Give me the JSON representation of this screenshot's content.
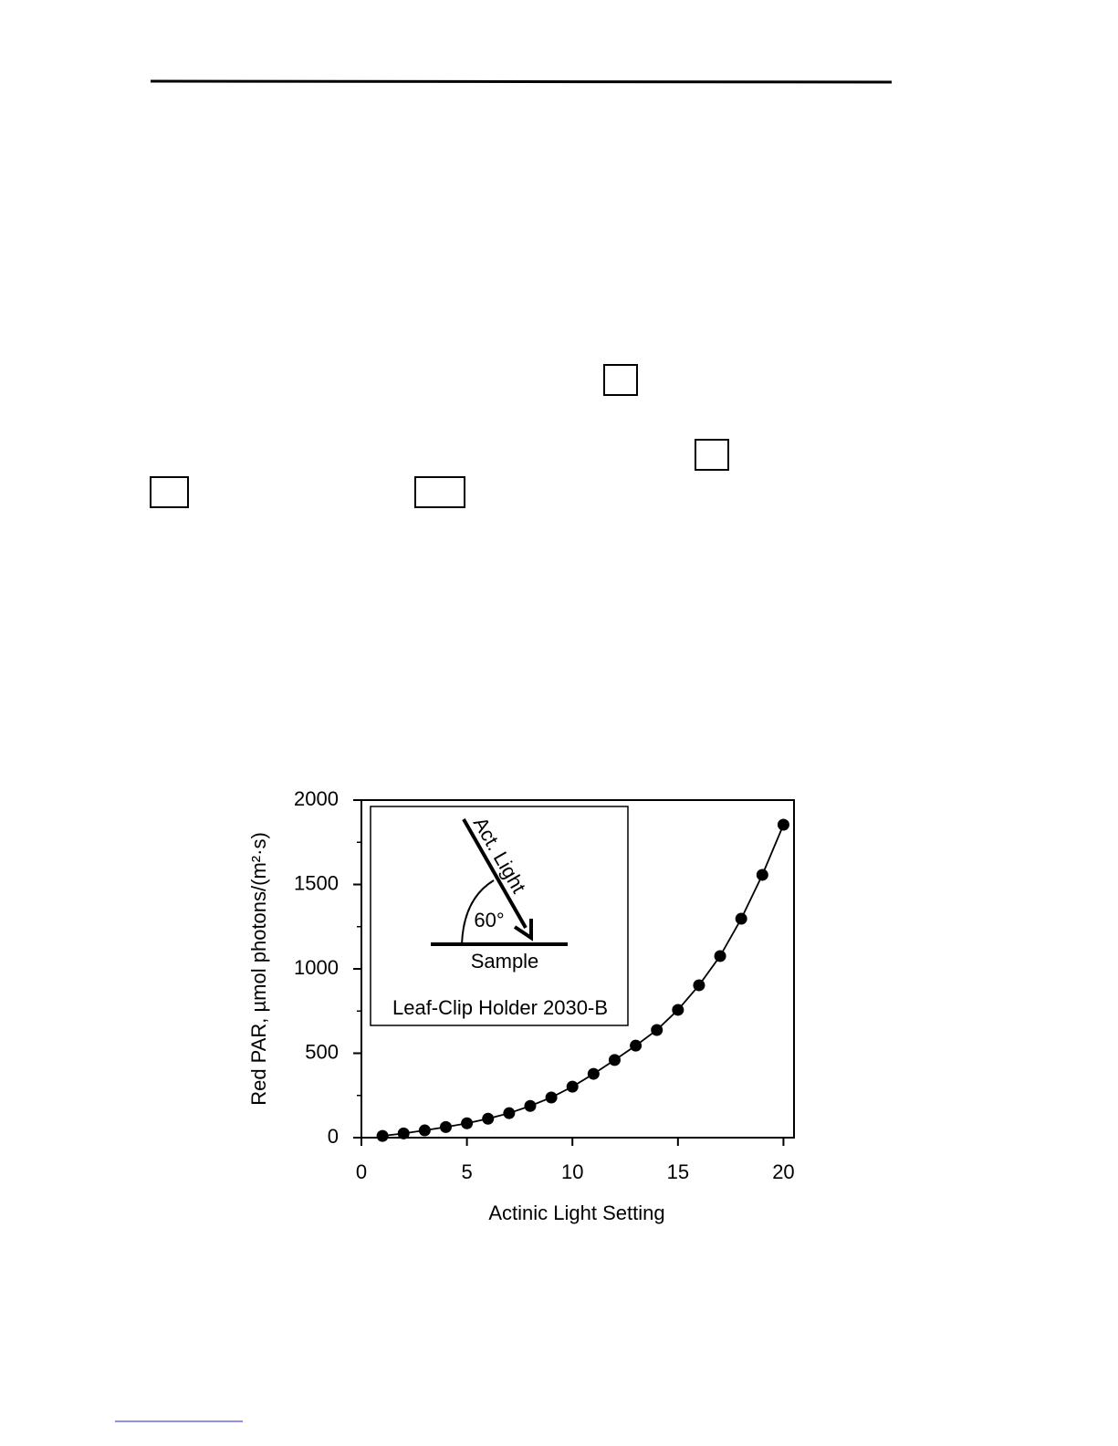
{
  "chart_data": {
    "type": "scatter",
    "line": true,
    "color": "#000000",
    "xlabel": "Actinic Light Setting",
    "ylabel": "Red PAR, µmol photons/(m²·s)",
    "x": [
      1,
      2,
      3,
      4,
      5,
      6,
      7,
      8,
      9,
      10,
      11,
      12,
      13,
      14,
      15,
      16,
      17,
      18,
      19,
      20
    ],
    "values": [
      10,
      25,
      43,
      63,
      85,
      112,
      145,
      188,
      238,
      302,
      378,
      460,
      545,
      638,
      757,
      903,
      1076,
      1297,
      1557,
      1854
    ],
    "xlim": [
      0,
      20.5
    ],
    "xticks": [
      0,
      5,
      10,
      15,
      20
    ],
    "ylim": [
      0,
      2000
    ],
    "yticks": [
      0,
      500,
      1000,
      1500,
      2000
    ],
    "yminorticks": [
      250,
      750,
      1250,
      1750
    ],
    "inset": {
      "arrow_label": "Act. Light",
      "angle_label": "60°",
      "surface_label": "Sample",
      "caption": "Leaf-Clip Holder 2030-B"
    }
  }
}
